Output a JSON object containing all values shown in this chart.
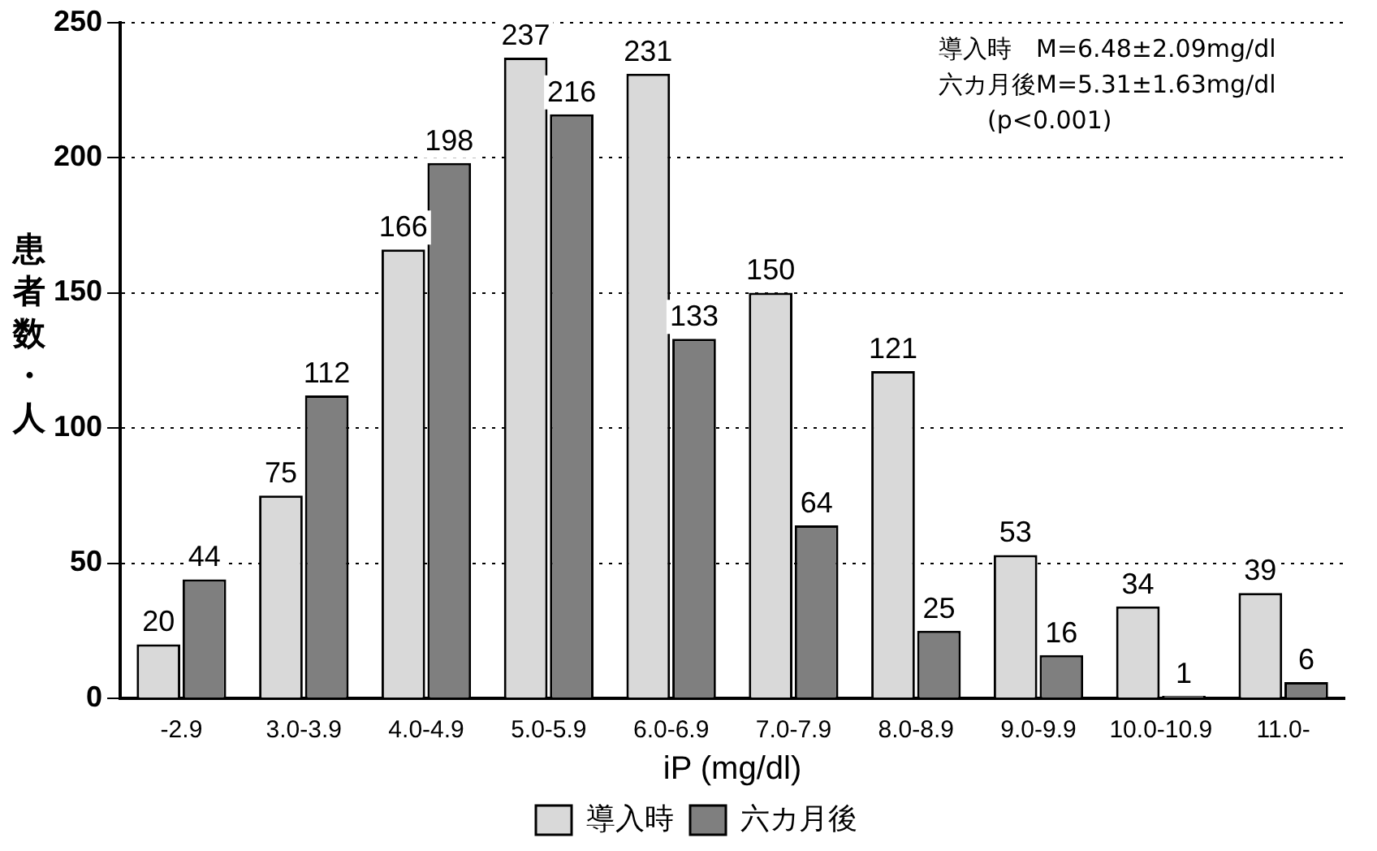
{
  "chart_data": {
    "type": "bar",
    "xlabel": "iP (mg/dl)",
    "ylabel": "患者数・人",
    "categories": [
      "-2.9",
      "3.0-3.9",
      "4.0-4.9",
      "5.0-5.9",
      "6.0-6.9",
      "7.0-7.9",
      "8.0-8.9",
      "9.0-9.9",
      "10.0-10.9",
      "11.0-"
    ],
    "series": [
      {
        "name": "導入時",
        "color": "#d9d9d9",
        "values": [
          20,
          75,
          166,
          237,
          231,
          150,
          121,
          53,
          34,
          39
        ]
      },
      {
        "name": "六カ月後",
        "color": "#7f7f7f",
        "values": [
          44,
          112,
          198,
          216,
          133,
          64,
          25,
          16,
          1,
          6
        ]
      }
    ],
    "ylim": [
      0,
      250
    ],
    "yticks": [
      0,
      50,
      100,
      150,
      200,
      250
    ],
    "grid": "y",
    "legend": "bottom",
    "data_labels": true,
    "annotations": [
      "導入時　M=6.48±2.09mg/dl",
      "六カ月後M=5.31±1.63mg/dl",
      "(p<0.001)"
    ]
  }
}
